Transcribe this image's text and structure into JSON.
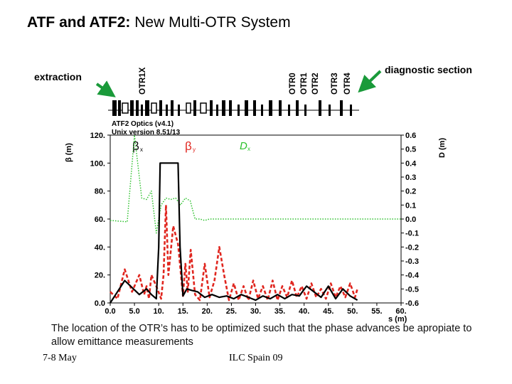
{
  "title": {
    "bold": "ATF and ATF2:",
    "rest": " New Multi-OTR System"
  },
  "labels": {
    "extraction": "extraction",
    "diagnostic": "diagnostic section",
    "otr_names": [
      "OTR1X",
      "OTR0",
      "OTR1",
      "OTR2",
      "OTR3",
      "OTR4"
    ]
  },
  "caption": "The location of the OTR’s has to be optimized such that the phase advances be apropiate to allow emittance measurements",
  "footer": {
    "date": "7-8 May",
    "venue": "ILC Spain 09"
  },
  "colors": {
    "arrow": "#1a9a3a",
    "beta_x": "#000000",
    "beta_y": "#e0261f",
    "disp": "#2ec12e"
  },
  "chart_data": {
    "type": "line",
    "info_line1": "ATF2 Optics (v4.1)",
    "info_line2": "Unix version 8.51/13",
    "xlabel": "s (m)",
    "ylabel_left": "β (m)",
    "ylabel_right": "D (m)",
    "xlim": [
      0,
      60
    ],
    "ylim_left": [
      0,
      120
    ],
    "ylim_right": [
      -0.6,
      0.6
    ],
    "x_ticks": [
      "0.0",
      "5.0",
      "10.",
      "15.",
      "20.",
      "25.",
      "30.",
      "35.",
      "40.",
      "45.",
      "50.",
      "55.",
      "60."
    ],
    "x_tick_values": [
      0,
      5,
      10,
      15,
      20,
      25,
      30,
      35,
      40,
      45,
      50,
      55,
      60
    ],
    "y_left_ticks": [
      "0.0",
      "20.",
      "40.",
      "60.",
      "80.",
      "100.",
      "120."
    ],
    "y_left_values": [
      0,
      20,
      40,
      60,
      80,
      100,
      120
    ],
    "y_right_ticks": [
      "0.6",
      "0.5",
      "0.4",
      "0.3",
      "0.2",
      "0.1",
      "0.0",
      "-0.1",
      "-0.2",
      "-0.3",
      "-0.4",
      "-0.5",
      "-0.6"
    ],
    "y_right_values": [
      0.6,
      0.5,
      0.4,
      0.3,
      0.2,
      0.1,
      0.0,
      -0.1,
      -0.2,
      -0.3,
      -0.4,
      -0.5,
      -0.6
    ],
    "grid": false,
    "legend_position": "top",
    "series": [
      {
        "name": "βx",
        "axis": "left",
        "style": "solid",
        "x": [
          0,
          1.5,
          3,
          6,
          7.5,
          8.5,
          9.5,
          10,
          10.3,
          14,
          14.4,
          15,
          15.8,
          16.8,
          18,
          19.5,
          21,
          22.5,
          24,
          25.5,
          27,
          28.5,
          30,
          31.5,
          33,
          34.5,
          36,
          37.5,
          39,
          40.5,
          42,
          43.5,
          45,
          46.5,
          48,
          49.5,
          51
        ],
        "y": [
          0,
          8,
          16,
          6,
          10,
          6,
          3,
          40,
          100,
          100,
          40,
          5,
          10,
          9,
          8,
          4,
          6,
          4,
          5,
          3,
          6,
          4,
          2,
          5,
          3,
          6,
          3,
          6,
          5,
          12,
          8,
          4,
          12,
          3,
          10,
          5,
          2
        ]
      },
      {
        "name": "βy",
        "axis": "left",
        "style": "dashed",
        "x": [
          0,
          1.5,
          3,
          4.5,
          6,
          7,
          7.5,
          8,
          8.5,
          9.5,
          10.5,
          11,
          11.5,
          12,
          13,
          14,
          15,
          15.5,
          16,
          16.6,
          17.5,
          18.5,
          19.5,
          20.5,
          21.5,
          22.5,
          23.5,
          24.5,
          25.5,
          26.5,
          27.5,
          28.5,
          29.5,
          30.5,
          31.5,
          32.5,
          33.5,
          34.5,
          35.5,
          36.5,
          37.5,
          38.5,
          39.5,
          40.5,
          41.5,
          42.5,
          43.5,
          44.5,
          45.5,
          46.5,
          47.5,
          48.5,
          49.5,
          50.5,
          51
        ],
        "y": [
          8,
          3,
          24,
          8,
          20,
          6,
          12,
          3,
          20,
          12,
          3,
          20,
          70,
          20,
          55,
          42,
          5,
          28,
          8,
          38,
          6,
          2,
          28,
          4,
          16,
          40,
          20,
          2,
          14,
          2,
          12,
          2,
          16,
          3,
          12,
          2,
          16,
          2,
          12,
          4,
          16,
          4,
          12,
          3,
          14,
          4,
          10,
          3,
          14,
          4,
          12,
          4,
          14,
          4,
          10
        ]
      },
      {
        "name": "Dx",
        "axis": "right",
        "style": "dotted",
        "x": [
          0,
          3.5,
          5,
          6.5,
          7.5,
          8.5,
          9.5,
          10.5,
          11.5,
          12.5,
          13.5,
          14.5,
          15.5,
          16.5,
          17.5,
          18.5,
          19.5,
          20.5,
          21.5,
          60
        ],
        "y": [
          -0.01,
          -0.02,
          0.6,
          0.15,
          0.14,
          0.2,
          -0.1,
          0.1,
          0.15,
          0.14,
          0.15,
          0.1,
          0.15,
          0.13,
          0.0,
          0.0,
          -0.01,
          0.0,
          0.0,
          0.0
        ]
      }
    ]
  }
}
